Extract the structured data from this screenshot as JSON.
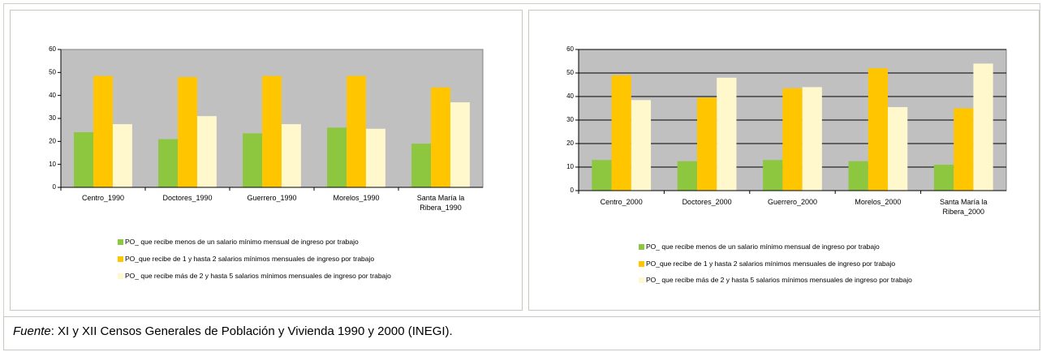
{
  "chart_data": [
    {
      "type": "bar",
      "categories": [
        "Centro_1990",
        "Doctores_1990",
        "Guerrero_1990",
        "Morelos_1990",
        "Santa María la Ribera_1990"
      ],
      "series": [
        {
          "name": "PO_ que  recibe menos de un salario mínimo mensual de ingreso por trabajo",
          "color": "#8dc63f",
          "values": [
            24,
            21,
            23.5,
            26,
            19
          ]
        },
        {
          "name": "PO_que  recibe de 1 y hasta 2 salarios mínimos mensuales de ingreso por trabajo",
          "color": "#ffc600",
          "values": [
            48.5,
            48,
            48.5,
            48.5,
            43.5
          ]
        },
        {
          "name": "PO_ que  recibe más de 2 y hasta 5 salarios mínimos mensuales de ingreso por trabajo",
          "color": "#fff8cc",
          "values": [
            27.5,
            31,
            27.5,
            25.5,
            37
          ]
        }
      ],
      "ylim": [
        0,
        60
      ],
      "yticks": [
        0,
        10,
        20,
        30,
        40,
        50,
        60
      ],
      "grid": false
    },
    {
      "type": "bar",
      "categories": [
        "Centro_2000",
        "Doctores_2000",
        "Guerrero_2000",
        "Morelos_2000",
        "Santa María la Ribera_2000"
      ],
      "series": [
        {
          "name": "PO_ que  recibe menos de un salario mínimo mensual de ingreso por trabajo",
          "color": "#8dc63f",
          "values": [
            13,
            12.5,
            13,
            12.5,
            11
          ]
        },
        {
          "name": "PO_que  recibe de 1 y hasta 2 salarios mínimos mensuales de ingreso por trabajo",
          "color": "#ffc600",
          "values": [
            49,
            39.5,
            43.5,
            52,
            35
          ]
        },
        {
          "name": "PO_ que  recibe más de 2 y hasta 5 salarios mínimos mensuales de ingreso por trabajo",
          "color": "#fff8cc",
          "values": [
            38.5,
            48,
            44,
            35.5,
            54
          ]
        }
      ],
      "ylim": [
        0,
        60
      ],
      "yticks": [
        0,
        10,
        20,
        30,
        40,
        50,
        60
      ],
      "grid": true
    }
  ],
  "footer": {
    "label": "Fuente",
    "text": ": XI y XII Censos Generales de Población y Vivienda 1990 y 2000 (INEGI)."
  }
}
